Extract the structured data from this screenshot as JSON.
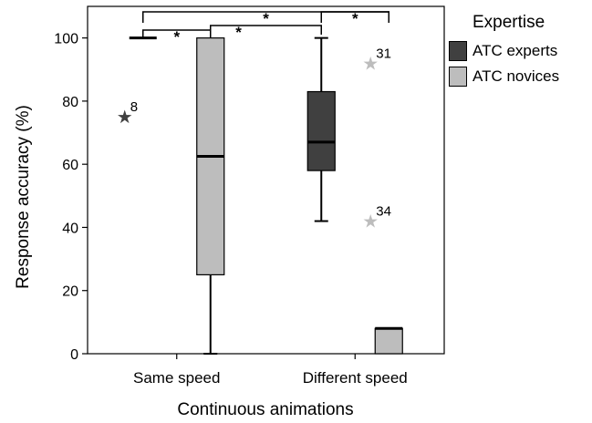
{
  "chart_data": {
    "type": "boxplot",
    "title": "",
    "xlabel": "Continuous animations",
    "ylabel": "Response accuracy (%)",
    "ylim": [
      0,
      110
    ],
    "yticks": [
      0,
      20,
      40,
      60,
      80,
      100
    ],
    "grid": false,
    "legend_position": "right",
    "categories": [
      "Same speed",
      "Different speed"
    ],
    "legend": {
      "title": "Expertise",
      "items": [
        {
          "name": "ATC experts",
          "color": "#404040"
        },
        {
          "name": "ATC novices",
          "color": "#bdbdbd"
        }
      ]
    },
    "series": [
      {
        "name": "ATC experts",
        "color": "#404040",
        "boxes": [
          {
            "category": "Same speed",
            "whisker_low": 100,
            "q1": 100,
            "median": 100,
            "q3": 100,
            "whisker_high": 100,
            "outliers": [
              {
                "value": 75,
                "label": "8"
              }
            ]
          },
          {
            "category": "Different speed",
            "whisker_low": 42,
            "q1": 58,
            "median": 67,
            "q3": 83,
            "whisker_high": 100,
            "outliers": []
          }
        ]
      },
      {
        "name": "ATC novices",
        "color": "#bdbdbd",
        "boxes": [
          {
            "category": "Same speed",
            "whisker_low": 0,
            "q1": 25,
            "median": 62.5,
            "q3": 100,
            "whisker_high": 100,
            "outliers": []
          },
          {
            "category": "Different speed",
            "whisker_low": 0,
            "q1": 0,
            "median": 8,
            "q3": 8,
            "whisker_high": 8,
            "outliers": [
              {
                "value": 92,
                "label": "31"
              },
              {
                "value": 42,
                "label": "34"
              }
            ]
          }
        ]
      }
    ],
    "significance": [
      {
        "label": "*",
        "from": "Same speed / ATC experts",
        "to": "Same speed / ATC novices"
      },
      {
        "label": "*",
        "from": "Same speed / ATC experts",
        "to": "Different speed / ATC novices"
      },
      {
        "label": "*",
        "from": "Same speed / ATC novices",
        "to": "Different speed / ATC experts"
      },
      {
        "label": "*",
        "from": "Different speed / ATC experts",
        "to": "Different speed / ATC novices"
      }
    ]
  }
}
